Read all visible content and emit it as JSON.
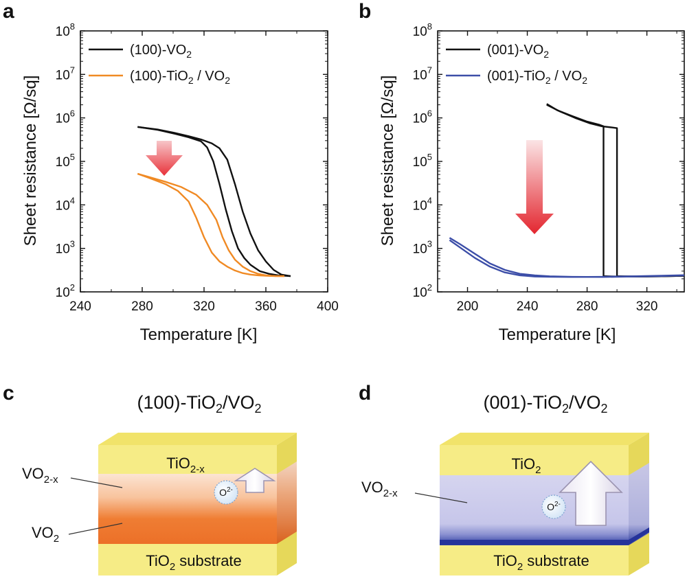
{
  "panels": {
    "a": "a",
    "b": "b",
    "c": "c",
    "d": "d"
  },
  "chart_data": [
    {
      "panel": "a",
      "type": "line",
      "xlabel": "Temperature [K]",
      "ylabel": "Sheet resistance [Ω/sq]",
      "xlim": [
        240,
        400
      ],
      "ylim": [
        100,
        100000000
      ],
      "yscale": "log",
      "xticks": [
        240,
        280,
        320,
        360,
        400
      ],
      "yticks": [
        100,
        1000,
        10000,
        100000,
        1000000,
        10000000,
        100000000
      ],
      "legend_position": "top-left",
      "series": [
        {
          "name": "(100)-VO2",
          "color": "#111111",
          "branches": [
            {
              "x": [
                277,
                290,
                300,
                310,
                318,
                325,
                330,
                335,
                340,
                345,
                350,
                355,
                360,
                365,
                370,
                376
              ],
              "y": [
                620000,
                540000,
                460000,
                380000,
                320000,
                260000,
                200000,
                110000,
                30000,
                7000,
                2200,
                900,
                500,
                320,
                250,
                230
              ]
            },
            {
              "x": [
                277,
                290,
                300,
                310,
                318,
                322,
                326,
                330,
                334,
                338,
                342,
                346,
                350,
                356,
                362,
                368,
                376
              ],
              "y": [
                620000,
                530000,
                440000,
                360000,
                290000,
                210000,
                100000,
                30000,
                8000,
                2500,
                1000,
                600,
                420,
                300,
                260,
                240,
                230
              ]
            }
          ]
        },
        {
          "name": "(100)-TiO2 / VO2",
          "color": "#f08a24",
          "branches": [
            {
              "x": [
                277,
                285,
                295,
                305,
                315,
                322,
                328,
                332,
                336,
                340,
                345,
                350,
                355,
                360,
                366,
                372
              ],
              "y": [
                52000,
                43000,
                34000,
                26000,
                17000,
                10000,
                4500,
                1800,
                900,
                550,
                380,
                300,
                260,
                240,
                232,
                230
              ]
            },
            {
              "x": [
                277,
                285,
                295,
                303,
                310,
                315,
                320,
                325,
                330,
                335,
                340,
                345,
                350,
                355,
                360,
                366,
                372
              ],
              "y": [
                52000,
                41000,
                30000,
                21000,
                12000,
                5000,
                1800,
                800,
                500,
                380,
                310,
                270,
                250,
                240,
                234,
                231,
                230
              ]
            }
          ]
        }
      ]
    },
    {
      "panel": "b",
      "type": "line",
      "xlabel": "Temperature [K]",
      "ylabel": "Sheet resistance [Ω/sq]",
      "xlim": [
        180,
        345
      ],
      "ylim": [
        100,
        100000000
      ],
      "yscale": "log",
      "xticks": [
        200,
        240,
        280,
        320
      ],
      "yticks": [
        100,
        1000,
        10000,
        100000,
        1000000,
        10000000,
        100000000
      ],
      "legend_position": "top-left",
      "series": [
        {
          "name": "(001)-VO2",
          "color": "#111111",
          "branches": [
            {
              "x": [
                253,
                260,
                270,
                280,
                288,
                291,
                291,
                294,
                300,
                310,
                320,
                330,
                345
              ],
              "y": [
                2100000,
                1500000,
                1100000,
                820000,
                700000,
                640000,
                230,
                228,
                226,
                225,
                225,
                228,
                235
              ]
            },
            {
              "x": [
                253,
                262,
                272,
                282,
                290,
                297,
                300,
                300,
                305,
                315,
                330,
                345
              ],
              "y": [
                2000000,
                1400000,
                1000000,
                750000,
                640000,
                600000,
                580000,
                230,
                228,
                226,
                228,
                235
              ]
            }
          ]
        },
        {
          "name": "(001)-TiO2 / VO2",
          "color": "#3c4ea8",
          "branches": [
            {
              "x": [
                188,
                195,
                205,
                215,
                225,
                235,
                245,
                255,
                270,
                290,
                310,
                330,
                345
              ],
              "y": [
                1750.0,
                1250,
                750,
                450,
                320,
                260,
                240,
                228,
                222,
                220,
                225,
                232,
                240
              ]
            },
            {
              "x": [
                188,
                195,
                205,
                215,
                225,
                235,
                245,
                255,
                270,
                290,
                310,
                330,
                345
              ],
              "y": [
                1550,
                1050,
                600,
                380,
                280,
                240,
                225,
                222,
                220,
                222,
                228,
                235,
                242
              ]
            }
          ]
        }
      ]
    }
  ],
  "diagram_c": {
    "title": "(100)-TiO2/VO2",
    "layer_top": "TiO2-x",
    "label_vox": "VO2-x",
    "label_vo2": "VO2",
    "substrate": "TiO2 substrate",
    "ion": "O2-",
    "colors": {
      "cap": "#f5e97a",
      "vox": "#fbe0cc",
      "vo2": "#ef7a2e",
      "substrate": "#f5e97a"
    }
  },
  "diagram_d": {
    "title": "(001)-TiO2/VO2",
    "layer_top": "TiO2",
    "label_vox": "VO2-x",
    "substrate": "TiO2 substrate",
    "ion": "O2-",
    "colors": {
      "cap": "#f5e97a",
      "vox": "#d4d3ee",
      "interface": "#2a3aa0",
      "substrate": "#f5e97a"
    }
  }
}
